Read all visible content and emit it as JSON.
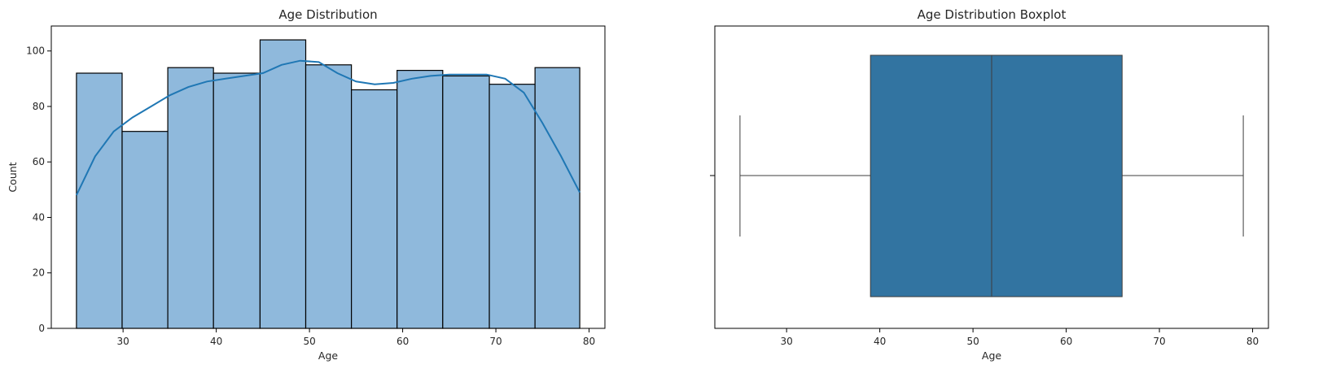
{
  "chart_data": [
    {
      "type": "bar",
      "title": "Age Distribution",
      "xlabel": "Age",
      "ylabel": "Count",
      "xlim": [
        22.3,
        81.7
      ],
      "ylim": [
        0,
        109
      ],
      "xticks": [
        30,
        40,
        50,
        60,
        70,
        80
      ],
      "yticks": [
        0,
        20,
        40,
        60,
        80,
        100
      ],
      "bins": [
        {
          "start": 25.0,
          "end": 29.9,
          "count": 92
        },
        {
          "start": 29.9,
          "end": 34.8,
          "count": 71
        },
        {
          "start": 34.8,
          "end": 39.7,
          "count": 94
        },
        {
          "start": 39.7,
          "end": 44.7,
          "count": 92
        },
        {
          "start": 44.7,
          "end": 49.6,
          "count": 104
        },
        {
          "start": 49.6,
          "end": 54.5,
          "count": 95
        },
        {
          "start": 54.5,
          "end": 59.4,
          "count": 86
        },
        {
          "start": 59.4,
          "end": 64.3,
          "count": 93
        },
        {
          "start": 64.3,
          "end": 69.3,
          "count": 91
        },
        {
          "start": 69.3,
          "end": 74.2,
          "count": 88
        },
        {
          "start": 74.2,
          "end": 79.0,
          "count": 94
        }
      ],
      "kde": {
        "x": [
          25,
          27,
          29,
          31,
          33,
          35,
          37,
          39,
          41,
          43,
          45,
          47,
          49,
          51,
          53,
          55,
          57,
          59,
          61,
          63,
          65,
          67,
          69,
          71,
          73,
          75,
          77,
          79
        ],
        "y": [
          48,
          62,
          71,
          76,
          80,
          84,
          87,
          89,
          90,
          91,
          92,
          95,
          96.5,
          96,
          92,
          89,
          88,
          88.5,
          90,
          91,
          91.5,
          91.5,
          91.5,
          90,
          85,
          74,
          62,
          49
        ]
      },
      "bar_color": "#8fb9dc",
      "line_color": "#1f77b4",
      "grid": false
    },
    {
      "type": "boxplot",
      "title": "Age Distribution Boxplot",
      "xlabel": "Age",
      "xlim": [
        22.3,
        81.7
      ],
      "xticks": [
        30,
        40,
        50,
        60,
        70,
        80
      ],
      "stats": {
        "min": 25,
        "q1": 39,
        "median": 52,
        "q3": 66,
        "max": 79
      },
      "box_color": "#3274a1",
      "grid": false
    }
  ]
}
